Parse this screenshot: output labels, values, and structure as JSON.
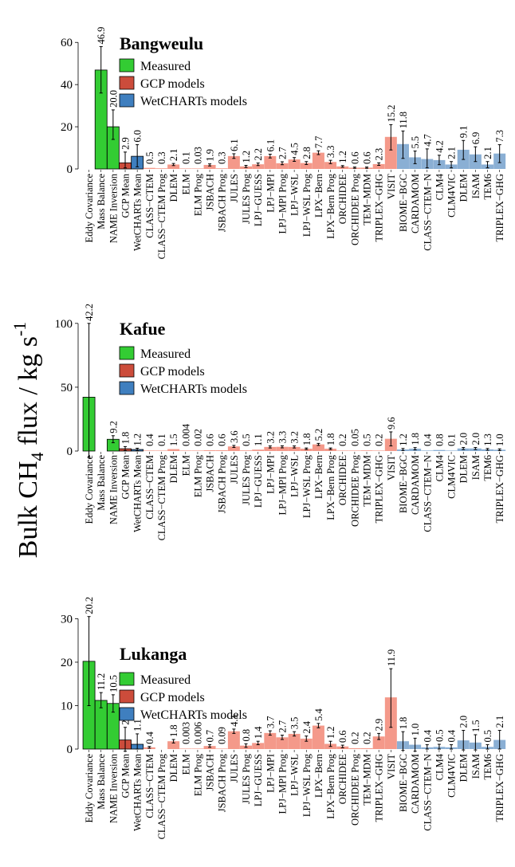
{
  "y_axis_label": {
    "main": "Bulk CH",
    "sub": "4",
    "rest": " flux / kg s",
    "sup": "-1"
  },
  "legend_labels": [
    "Measured",
    "GCP models",
    "WetCHARTs models"
  ],
  "colors": {
    "measured": "#33cc33",
    "gcp_mean": "#cc4c3b",
    "gcp_model": "#f4998a",
    "wetcharts_mean": "#3f7fbf",
    "wetcharts_model": "#8aafd4"
  },
  "chart_data": [
    {
      "type": "bar",
      "title": "Bangweulu",
      "ylim": [
        0,
        65
      ],
      "yticks": [
        0,
        20,
        40,
        60
      ],
      "categories": [
        "Eddy Covariance",
        "Mass Balance",
        "NAME Inversion",
        "GCP Mean",
        "WetCHARTs Mean",
        "CLASS−CTEM",
        "CLASS−CTEM Prog",
        "DLEM",
        "ELM",
        "ELM Prog",
        "JSBACH",
        "JSBACH Prog",
        "JULES",
        "JULES Prog",
        "LPJ−GUESS",
        "LPJ−MPI",
        "LPJ−MPI Prog",
        "LPJ−WSL",
        "LPJ−WSL Prog",
        "LPX−Bern",
        "LPX−Bern Prog",
        "ORCHIDEE",
        "ORCHIDEE Prog",
        "TEM−MDM",
        "TRIPLEX−GHG",
        "VISIT",
        "BIOME−BGC",
        "CARDAMOM",
        "CLASS−CTEM−N",
        "CLM4",
        "CLM4VIC",
        "DLEM",
        "ISAM",
        "TEM6",
        "TRIPLEX−GHG"
      ],
      "groups": [
        "measured",
        "measured",
        "measured",
        "gcp_mean",
        "wetcharts_mean",
        "gcp_model",
        "gcp_model",
        "gcp_model",
        "gcp_model",
        "gcp_model",
        "gcp_model",
        "gcp_model",
        "gcp_model",
        "gcp_model",
        "gcp_model",
        "gcp_model",
        "gcp_model",
        "gcp_model",
        "gcp_model",
        "gcp_model",
        "gcp_model",
        "gcp_model",
        "gcp_model",
        "gcp_model",
        "gcp_model",
        "gcp_model",
        "wetcharts_model",
        "wetcharts_model",
        "wetcharts_model",
        "wetcharts_model",
        "wetcharts_model",
        "wetcharts_model",
        "wetcharts_model",
        "wetcharts_model",
        "wetcharts_model"
      ],
      "values": [
        null,
        46.9,
        20.0,
        2.9,
        6.0,
        0.5,
        0.3,
        2.1,
        0.1,
        0.03,
        1.9,
        0.3,
        6.1,
        1.2,
        2.2,
        6.1,
        2.7,
        4.5,
        2.8,
        7.7,
        3.3,
        1.2,
        0.6,
        0.6,
        2.3,
        15.2,
        11.8,
        5.5,
        4.7,
        4.2,
        2.1,
        9.1,
        6.9,
        2.1,
        7.3
      ],
      "labels": [
        "",
        "46.9",
        "20.0",
        "2.9",
        "6.0",
        "0.5",
        "0.3",
        "2.1",
        "0.1",
        "0.03",
        "1.9",
        "0.3",
        "6.1",
        "1.2",
        "2.2",
        "6.1",
        "2.7",
        "4.5",
        "2.8",
        "7.7",
        "3.3",
        "1.2",
        "0.6",
        "0.6",
        "2.3",
        "15.2",
        "11.8",
        "5.5",
        "4.7",
        "4.2",
        "2.1",
        "9.1",
        "6.9",
        "2.1",
        "7.3"
      ],
      "errors": [
        null,
        [
          36.0,
          58.0
        ],
        [
          14.0,
          28.0
        ],
        [
          0.5,
          8.0
        ],
        [
          1.0,
          11.5
        ],
        null,
        null,
        [
          1.6,
          2.6
        ],
        null,
        null,
        [
          1.4,
          2.4
        ],
        null,
        [
          5.0,
          7.2
        ],
        [
          0.7,
          1.7
        ],
        [
          1.6,
          2.8
        ],
        [
          5.2,
          7.0
        ],
        [
          2.0,
          3.4
        ],
        [
          3.6,
          5.4
        ],
        [
          2.1,
          3.5
        ],
        [
          6.8,
          8.6
        ],
        [
          2.5,
          4.1
        ],
        [
          0.8,
          1.6
        ],
        [
          0.3,
          0.9
        ],
        [
          0.3,
          0.9
        ],
        [
          1.7,
          2.9
        ],
        [
          9.0,
          21.0
        ],
        [
          5.0,
          18.0
        ],
        [
          2.5,
          8.5
        ],
        [
          0.5,
          9.5
        ],
        [
          2.0,
          6.5
        ],
        [
          0.5,
          3.5
        ],
        [
          4.5,
          13.5
        ],
        [
          3.5,
          10.5
        ],
        [
          0.5,
          3.5
        ],
        [
          3.0,
          11.5
        ]
      ]
    },
    {
      "type": "bar",
      "title": "Kafue",
      "ylim": [
        0,
        108
      ],
      "yticks": [
        0,
        50,
        100
      ],
      "categories": [
        "Eddy Covariance",
        "Mass Balance",
        "NAME Inversion",
        "GCP Mean",
        "WetCHARTs Mean",
        "CLASS−CTEM",
        "CLASS−CTEM Prog",
        "DLEM",
        "ELM",
        "ELM Prog",
        "JSBACH",
        "JSBACH Prog",
        "JULES",
        "JULES Prog",
        "LPJ−GUESS",
        "LPJ−MPI",
        "LPJ−MPI Prog",
        "LPJ−WSL",
        "LPJ−WSL Prog",
        "LPX−Bern",
        "LPX−Bern Prog",
        "ORCHIDEE",
        "ORCHIDEE Prog",
        "TEM−MDM",
        "TRIPLEX−GHG",
        "VISIT",
        "BIOME−BGC",
        "CARDAMOM",
        "CLASS−CTEM−N",
        "CLM4",
        "CLM4VIC",
        "DLEM",
        "ISAM",
        "TEM6",
        "TRIPLEX−GHG"
      ],
      "groups": [
        "measured",
        "measured",
        "measured",
        "gcp_mean",
        "wetcharts_mean",
        "gcp_model",
        "gcp_model",
        "gcp_model",
        "gcp_model",
        "gcp_model",
        "gcp_model",
        "gcp_model",
        "gcp_model",
        "gcp_model",
        "gcp_model",
        "gcp_model",
        "gcp_model",
        "gcp_model",
        "gcp_model",
        "gcp_model",
        "gcp_model",
        "gcp_model",
        "gcp_model",
        "gcp_model",
        "gcp_model",
        "gcp_model",
        "wetcharts_model",
        "wetcharts_model",
        "wetcharts_model",
        "wetcharts_model",
        "wetcharts_model",
        "wetcharts_model",
        "wetcharts_model",
        "wetcharts_model",
        "wetcharts_model"
      ],
      "values": [
        42.2,
        null,
        9.2,
        1.8,
        1.2,
        0.4,
        0.1,
        1.5,
        0.004,
        0.02,
        0.6,
        0.6,
        3.6,
        0.5,
        1.1,
        3.2,
        3.3,
        3.2,
        1.8,
        5.2,
        1.8,
        0.2,
        0.05,
        0.5,
        0.2,
        9.6,
        1.2,
        1.8,
        0.4,
        0.8,
        0.1,
        2.0,
        2.0,
        1.3,
        1.0
      ],
      "labels": [
        "42.2",
        "",
        "9.2",
        "1.8",
        "1.2",
        "0.4",
        "0.1",
        "1.5",
        "0.004",
        "0.02",
        "0.6",
        "0.6",
        "3.6",
        "0.5",
        "1.1",
        "3.2",
        "3.3",
        "3.2",
        "1.8",
        "5.2",
        "1.8",
        "0.2",
        "0.05",
        "0.5",
        "0.2",
        "9.6",
        "1.2",
        "1.8",
        "0.4",
        "0.8",
        "0.1",
        "2.0",
        "2.0",
        "1.3",
        "1.0"
      ],
      "errors": [
        [
          -5.0,
          100.0
        ],
        null,
        [
          6.5,
          12.0
        ],
        [
          0.3,
          3.5
        ],
        [
          0.2,
          2.2
        ],
        null,
        null,
        null,
        null,
        null,
        null,
        null,
        [
          2.8,
          4.4
        ],
        null,
        null,
        [
          2.4,
          4.0
        ],
        [
          2.5,
          4.1
        ],
        [
          2.4,
          4.0
        ],
        [
          1.2,
          2.4
        ],
        [
          4.4,
          6.0
        ],
        [
          1.2,
          2.4
        ],
        null,
        null,
        null,
        null,
        [
          4.0,
          15.0
        ],
        [
          0.4,
          2.0
        ],
        [
          0.9,
          2.7
        ],
        null,
        null,
        null,
        [
          1.2,
          2.8
        ],
        [
          1.2,
          2.8
        ],
        [
          0.6,
          2.0
        ],
        [
          0.3,
          1.7
        ]
      ]
    },
    {
      "type": "bar",
      "title": "Lukanga",
      "ylim": [
        0,
        31
      ],
      "yticks": [
        0,
        10,
        20,
        30
      ],
      "categories": [
        "Eddy Covariance",
        "Mass Balance",
        "NAME Inversion",
        "GCP Mean",
        "WetCHARTs Mean",
        "CLASS−CTEM",
        "CLASS−CTEM Prog",
        "DLEM",
        "ELM",
        "ELM Prog",
        "JSBACH",
        "JSBACH Prog",
        "JULES",
        "JULES Prog",
        "LPJ−GUESS",
        "LPJ−MPI",
        "LPJ−MPI Prog",
        "LPJ−WSL",
        "LPJ−WSL Prog",
        "LPX−Bern",
        "LPX−Bern Prog",
        "ORCHIDEE",
        "ORCHIDEE Prog",
        "TEM−MDM",
        "TRIPLEX−GHG",
        "VISIT",
        "BIOME−BGC",
        "CARDAMOM",
        "CLASS−CTEM−N",
        "CLM4",
        "CLM4VIC",
        "DLEM",
        "ISAM",
        "TEM6",
        "TRIPLEX−GHG"
      ],
      "groups": [
        "measured",
        "measured",
        "measured",
        "gcp_mean",
        "wetcharts_mean",
        "gcp_model",
        "gcp_model",
        "gcp_model",
        "gcp_model",
        "gcp_model",
        "gcp_model",
        "gcp_model",
        "gcp_model",
        "gcp_model",
        "gcp_model",
        "gcp_model",
        "gcp_model",
        "gcp_model",
        "gcp_model",
        "gcp_model",
        "gcp_model",
        "gcp_model",
        "gcp_model",
        "gcp_model",
        "gcp_model",
        "gcp_model",
        "wetcharts_model",
        "wetcharts_model",
        "wetcharts_model",
        "wetcharts_model",
        "wetcharts_model",
        "wetcharts_model",
        "wetcharts_model",
        "wetcharts_model",
        "wetcharts_model"
      ],
      "values": [
        20.2,
        11.2,
        10.5,
        2.1,
        1.1,
        0.4,
        null,
        1.8,
        0.003,
        0.006,
        0.7,
        0.09,
        4.1,
        0.8,
        1.4,
        3.7,
        2.7,
        3.5,
        2.4,
        5.4,
        1.2,
        0.6,
        0.2,
        0.2,
        2.9,
        11.9,
        1.8,
        1.0,
        0.4,
        0.5,
        0.4,
        2.0,
        1.5,
        0.5,
        2.1
      ],
      "labels": [
        "20.2",
        "11.2",
        "10.5",
        "2.1",
        "1.1",
        "0.4",
        "",
        "1.8",
        "0.003",
        "0.006",
        "0.7",
        "0.09",
        "4.1",
        "0.8",
        "1.4",
        "3.7",
        "2.7",
        "3.5",
        "2.4",
        "5.4",
        "1.2",
        "0.6",
        "0.2",
        "0.2",
        "2.9",
        "11.9",
        "1.8",
        "1.0",
        "0.4",
        "0.5",
        "0.4",
        "2.0",
        "1.5",
        "0.5",
        "2.1"
      ],
      "errors": [
        [
          10.0,
          30.5
        ],
        [
          9.5,
          13.0
        ],
        [
          8.5,
          12.5
        ],
        [
          -0.5,
          5.0
        ],
        [
          0.0,
          3.5
        ],
        [
          0.2,
          0.6
        ],
        null,
        [
          1.4,
          2.2
        ],
        null,
        null,
        [
          0.4,
          1.0
        ],
        null,
        [
          3.6,
          4.6
        ],
        [
          0.4,
          1.2
        ],
        [
          1.0,
          1.8
        ],
        [
          3.2,
          4.2
        ],
        [
          2.2,
          3.2
        ],
        [
          3.0,
          4.0
        ],
        [
          1.8,
          3.0
        ],
        [
          4.9,
          5.9
        ],
        [
          0.6,
          1.8
        ],
        [
          0.3,
          0.9
        ],
        null,
        null,
        [
          2.2,
          3.6
        ],
        [
          5.0,
          18.5
        ],
        [
          -0.3,
          4.0
        ],
        [
          -0.5,
          2.5
        ],
        [
          0.0,
          1.0
        ],
        [
          0.0,
          1.1
        ],
        [
          0.0,
          1.0
        ],
        [
          -0.2,
          4.3
        ],
        [
          -0.2,
          3.3
        ],
        [
          0.0,
          1.0
        ],
        [
          0.0,
          4.3
        ]
      ]
    }
  ]
}
